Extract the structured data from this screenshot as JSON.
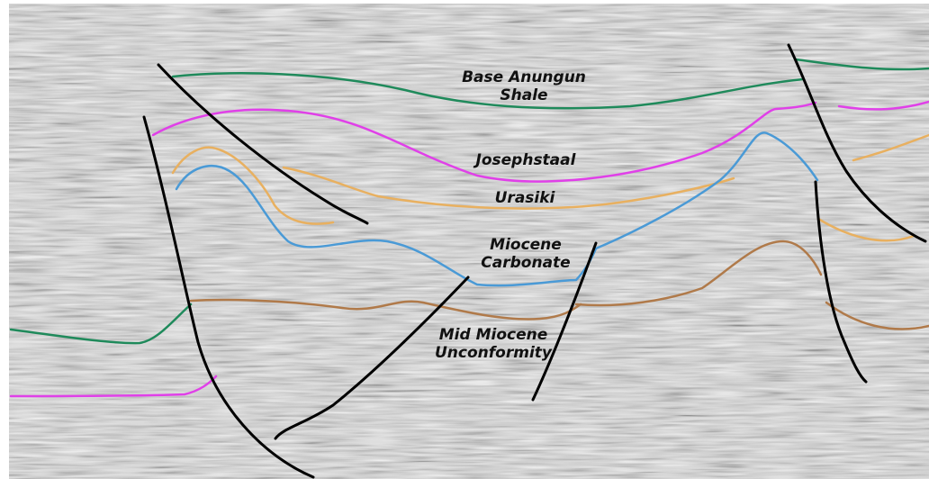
{
  "horizons": {
    "base_anungun": {
      "line1": "Base Anungun",
      "line2": "Shale",
      "color": "#1f8a5b"
    },
    "josephstaal": {
      "label": "Josephstaal",
      "color": "#e040e8"
    },
    "urasiki": {
      "label": "Urasiki",
      "color": "#e8b060"
    },
    "miocene_carbonate": {
      "line1": "Miocene",
      "line2": "Carbonate",
      "color": "#4a9ad6"
    },
    "mid_miocene": {
      "line1": "Mid Miocene",
      "line2": "Unconformity",
      "color": "#b07a4a"
    }
  },
  "fault_color": "#000000"
}
